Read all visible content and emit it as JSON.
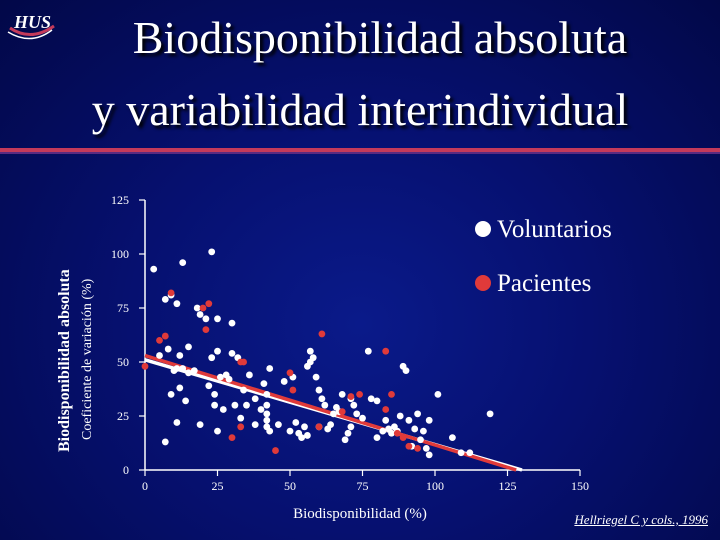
{
  "header": {
    "title_line1": "Biodisponibilidad absoluta",
    "title_line2": "y variabilidad interindividual",
    "logo_text": "HUS"
  },
  "footer": {
    "credit": "Hellriegel C y cols., 1996"
  },
  "colors": {
    "voluntarios": "#ffffff",
    "pacientes": "#e03a3a",
    "axis": "#ffffff"
  },
  "chart_data": {
    "type": "scatter",
    "xlabel": "Biodisponibilidad (%)",
    "ylabel": "Biodisponibilidad absoluta",
    "ylabel_secondary": "Coeficiente de variación  (%)",
    "xlim": [
      0,
      150
    ],
    "ylim": [
      0,
      125
    ],
    "x_ticks": [
      0,
      25,
      50,
      75,
      100,
      125,
      150
    ],
    "y_ticks": [
      0,
      25,
      50,
      75,
      100,
      125
    ],
    "legend_position": "top-right",
    "series": [
      {
        "name": "Voluntarios",
        "color": "#ffffff",
        "points": [
          [
            3,
            93
          ],
          [
            13,
            96
          ],
          [
            23,
            101
          ],
          [
            7,
            79
          ],
          [
            9,
            81
          ],
          [
            18,
            75
          ],
          [
            11,
            77
          ],
          [
            19,
            72
          ],
          [
            21,
            70
          ],
          [
            25,
            70
          ],
          [
            30,
            68
          ],
          [
            5,
            53
          ],
          [
            8,
            56
          ],
          [
            12,
            53
          ],
          [
            15,
            57
          ],
          [
            10,
            46
          ],
          [
            11,
            47
          ],
          [
            13,
            47
          ],
          [
            15,
            45
          ],
          [
            12,
            38
          ],
          [
            14,
            32
          ],
          [
            17,
            46
          ],
          [
            9,
            35
          ],
          [
            7,
            13
          ],
          [
            11,
            22
          ],
          [
            19,
            21
          ],
          [
            22,
            39
          ],
          [
            23,
            52
          ],
          [
            24,
            30
          ],
          [
            25,
            55
          ],
          [
            24,
            35
          ],
          [
            26,
            43
          ],
          [
            25,
            18
          ],
          [
            28,
            44
          ],
          [
            27,
            28
          ],
          [
            29,
            42
          ],
          [
            30,
            54
          ],
          [
            31,
            30
          ],
          [
            32,
            52
          ],
          [
            33,
            24
          ],
          [
            34,
            37
          ],
          [
            35,
            30
          ],
          [
            36,
            44
          ],
          [
            38,
            21
          ],
          [
            38,
            33
          ],
          [
            40,
            28
          ],
          [
            41,
            40
          ],
          [
            42,
            35
          ],
          [
            42,
            23
          ],
          [
            42,
            26
          ],
          [
            42,
            30
          ],
          [
            43,
            47
          ],
          [
            42,
            20
          ],
          [
            43,
            18
          ],
          [
            46,
            21
          ],
          [
            48,
            41
          ],
          [
            50,
            18
          ],
          [
            51,
            43
          ],
          [
            52,
            22
          ],
          [
            53,
            17
          ],
          [
            54,
            15
          ],
          [
            55,
            20
          ],
          [
            56,
            48
          ],
          [
            56,
            16
          ],
          [
            57,
            50
          ],
          [
            57,
            55
          ],
          [
            58,
            52
          ],
          [
            59,
            43
          ],
          [
            60,
            37
          ],
          [
            60,
            20
          ],
          [
            61,
            33
          ],
          [
            62,
            30
          ],
          [
            63,
            19
          ],
          [
            64,
            21
          ],
          [
            65,
            26
          ],
          [
            66,
            29
          ],
          [
            67,
            27
          ],
          [
            68,
            35
          ],
          [
            69,
            14
          ],
          [
            70,
            17
          ],
          [
            71,
            33
          ],
          [
            71,
            20
          ],
          [
            72,
            30
          ],
          [
            73,
            26
          ],
          [
            75,
            24
          ],
          [
            77,
            55
          ],
          [
            78,
            33
          ],
          [
            80,
            32
          ],
          [
            80,
            15
          ],
          [
            82,
            18
          ],
          [
            83,
            23
          ],
          [
            84,
            19
          ],
          [
            85,
            17
          ],
          [
            86,
            20
          ],
          [
            87,
            18
          ],
          [
            88,
            25
          ],
          [
            89,
            48
          ],
          [
            90,
            46
          ],
          [
            91,
            23
          ],
          [
            92,
            11
          ],
          [
            93,
            19
          ],
          [
            94,
            26
          ],
          [
            95,
            14
          ],
          [
            96,
            18
          ],
          [
            97,
            10
          ],
          [
            98,
            7
          ],
          [
            98,
            23
          ],
          [
            101,
            35
          ],
          [
            106,
            15
          ],
          [
            109,
            8
          ],
          [
            112,
            8
          ],
          [
            119,
            26
          ]
        ]
      },
      {
        "name": "Pacientes",
        "color": "#e03a3a",
        "points": [
          [
            0,
            48
          ],
          [
            5,
            60
          ],
          [
            9,
            82
          ],
          [
            7,
            62
          ],
          [
            20,
            75
          ],
          [
            21,
            65
          ],
          [
            22,
            77
          ],
          [
            33,
            50
          ],
          [
            34,
            50
          ],
          [
            30,
            15
          ],
          [
            33,
            20
          ],
          [
            45,
            9
          ],
          [
            50,
            45
          ],
          [
            51,
            37
          ],
          [
            60,
            20
          ],
          [
            61,
            63
          ],
          [
            68,
            27
          ],
          [
            71,
            34
          ],
          [
            74,
            35
          ],
          [
            83,
            28
          ],
          [
            83,
            55
          ],
          [
            85,
            35
          ],
          [
            87,
            17
          ],
          [
            89,
            15
          ],
          [
            91,
            11
          ],
          [
            94,
            10
          ]
        ]
      }
    ],
    "regression_lines": [
      {
        "series": "Voluntarios",
        "color": "#ffffff",
        "from": [
          0,
          51
        ],
        "to": [
          130,
          0
        ]
      },
      {
        "series": "Pacientes",
        "color": "#e03a3a",
        "from": [
          0,
          53
        ],
        "to": [
          128,
          0
        ]
      }
    ]
  }
}
